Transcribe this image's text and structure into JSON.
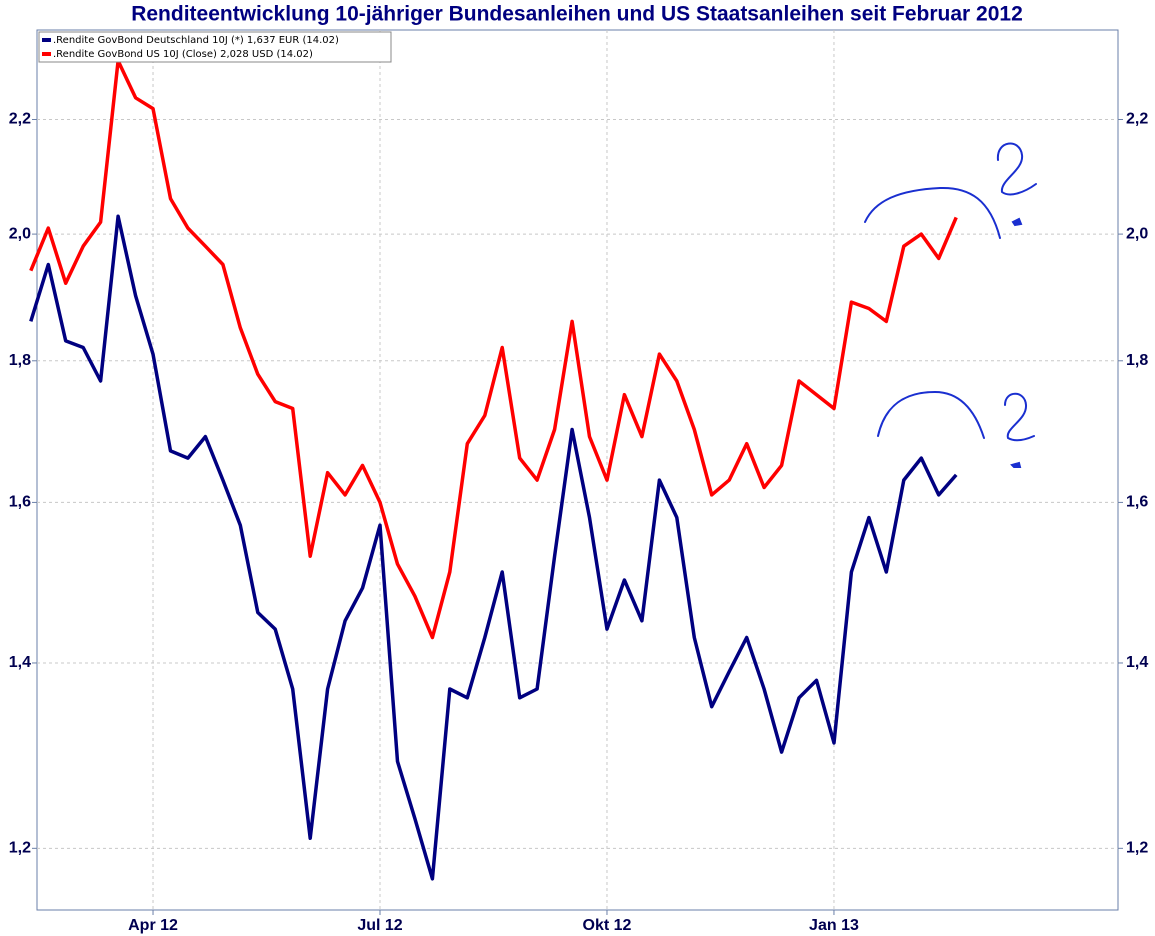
{
  "chart_data": {
    "type": "line",
    "title": "Renditeentwicklung 10-jähriger Bundesanleihen und US Staatsanleihen seit Februar 2012",
    "categories": [
      null,
      null,
      null,
      null,
      null,
      null,
      null,
      "Apr 12",
      null,
      null,
      null,
      null,
      null,
      null,
      null,
      null,
      null,
      null,
      null,
      null,
      "Jul 12",
      null,
      null,
      null,
      null,
      null,
      null,
      null,
      null,
      null,
      null,
      null,
      null,
      "Okt 12",
      null,
      null,
      null,
      null,
      null,
      null,
      null,
      null,
      null,
      null,
      null,
      null,
      "Jan 13",
      null,
      null,
      null,
      null,
      null,
      null,
      null,
      null,
      null,
      null,
      null,
      null,
      null,
      null,
      null,
      null
    ],
    "series": [
      {
        "name": ".Rendite GovBond Deutschland 10J (*) 1,637 EUR (14.02)",
        "color": "#000080",
        "values": [
          1.86,
          1.95,
          1.83,
          1.82,
          1.77,
          2.03,
          1.9,
          1.81,
          1.67,
          1.66,
          1.69,
          1.63,
          1.57,
          1.46,
          1.44,
          1.37,
          1.21,
          1.37,
          1.45,
          1.49,
          1.57,
          1.29,
          1.23,
          1.17,
          1.37,
          1.36,
          1.43,
          1.51,
          1.36,
          1.37,
          1.53,
          1.7,
          1.58,
          1.44,
          1.5,
          1.45,
          1.63,
          1.58,
          1.43,
          1.35,
          1.39,
          1.43,
          1.37,
          1.3,
          1.36,
          1.38,
          1.31,
          1.51,
          1.58,
          1.51,
          1.63,
          1.66,
          1.61,
          1.637,
          null,
          null,
          null,
          null,
          null,
          null,
          null,
          null,
          null
        ]
      },
      {
        "name": ".Rendite GovBond US 10J (Close) 2,028 USD (14.02)",
        "color": "#ff0000",
        "values": [
          1.94,
          2.01,
          1.92,
          1.98,
          2.02,
          2.31,
          2.24,
          2.22,
          2.06,
          2.01,
          1.98,
          1.95,
          1.85,
          1.78,
          1.74,
          1.73,
          1.53,
          1.64,
          1.61,
          1.65,
          1.6,
          1.52,
          1.48,
          1.43,
          1.51,
          1.68,
          1.72,
          1.82,
          1.66,
          1.63,
          1.7,
          1.86,
          1.69,
          1.63,
          1.75,
          1.69,
          1.81,
          1.77,
          1.7,
          1.61,
          1.63,
          1.68,
          1.62,
          1.65,
          1.77,
          1.75,
          1.73,
          1.89,
          1.88,
          1.86,
          1.98,
          2.0,
          1.96,
          2.028,
          null,
          null,
          null,
          null,
          null,
          null,
          null,
          null,
          null
        ]
      }
    ],
    "ylim": [
      1.14,
      2.37
    ],
    "yscale": "log",
    "yticks": [
      {
        "value": 1.2,
        "label": "1,2"
      },
      {
        "value": 1.4,
        "label": "1,4"
      },
      {
        "value": 1.6,
        "label": "1,6"
      },
      {
        "value": 1.8,
        "label": "1,8"
      },
      {
        "value": 2.0,
        "label": "2,0"
      },
      {
        "value": 2.2,
        "label": "2,2"
      }
    ],
    "grid": true,
    "legend": "upper left"
  }
}
